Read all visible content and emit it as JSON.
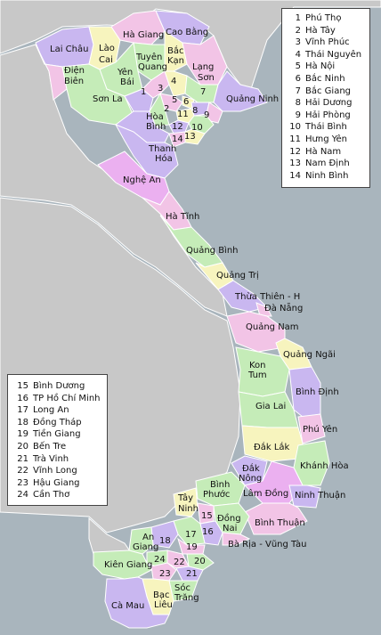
{
  "colors": {
    "sea": "#a9b5bd",
    "land_neighbor": "#c8c8c8",
    "border": "#ffffff",
    "pink": "#f2c4e6",
    "purple": "#c9b7f0",
    "green": "#c5ecb8",
    "yellow": "#f7f4be",
    "magenta": "#ebb0f0"
  },
  "legend_north": [
    {
      "num": "1",
      "name": "Phú Thọ"
    },
    {
      "num": "2",
      "name": "Hà Tây"
    },
    {
      "num": "3",
      "name": "Vĩnh Phúc"
    },
    {
      "num": "4",
      "name": "Thái Nguyên"
    },
    {
      "num": "5",
      "name": "Hà Nội"
    },
    {
      "num": "6",
      "name": "Bắc Ninh"
    },
    {
      "num": "7",
      "name": "Bắc Giang"
    },
    {
      "num": "8",
      "name": "Hải Dương"
    },
    {
      "num": "9",
      "name": "Hải Phòng"
    },
    {
      "num": "10",
      "name": "Thái Bình"
    },
    {
      "num": "11",
      "name": "Hưng Yên"
    },
    {
      "num": "12",
      "name": "Hà Nam"
    },
    {
      "num": "13",
      "name": "Nam Định"
    },
    {
      "num": "14",
      "name": "Ninh Bình"
    }
  ],
  "legend_south": [
    {
      "num": "15",
      "name": "Bình Dương"
    },
    {
      "num": "16",
      "name": "TP Hồ Chí Minh"
    },
    {
      "num": "17",
      "name": "Long An"
    },
    {
      "num": "18",
      "name": "Đồng Tháp"
    },
    {
      "num": "19",
      "name": "Tiền Giang"
    },
    {
      "num": "20",
      "name": "Bến Tre"
    },
    {
      "num": "21",
      "name": "Trà Vinh"
    },
    {
      "num": "22",
      "name": "Vĩnh Long"
    },
    {
      "num": "23",
      "name": "Hậu Giang"
    },
    {
      "num": "24",
      "name": "Cần Thơ"
    }
  ],
  "labels": {
    "lai_chau": "Lai Châu",
    "lao_cai": [
      "Lào",
      "Cai"
    ],
    "ha_giang": "Hà Giang",
    "cao_bang": "Cao Bằng",
    "tuyen_quang": [
      "Tuyên",
      "Quang"
    ],
    "bac_kan": [
      "Bắc",
      "Kạn"
    ],
    "lang_son": [
      "Lạng",
      "Sơn"
    ],
    "dien_bien": [
      "Điện",
      "Biên"
    ],
    "yen_bai": [
      "Yên",
      "Bái"
    ],
    "son_la": "Sơn La",
    "quang_ninh": "Quảng Ninh",
    "hoa_binh": [
      "Hòa",
      "Bình"
    ],
    "thanh_hoa": [
      "Thanh",
      "Hóa"
    ],
    "nghe_an": "Nghệ An",
    "ha_tinh": "Hà Tĩnh",
    "quang_binh": "Quảng Bình",
    "quang_tri": "Quảng Trị",
    "thua_thien_hue": "Thừa Thiên - H",
    "da_nang": "Đà Nẵng",
    "quang_nam": "Quảng Nam",
    "quang_ngai": "Quảng Ngãi",
    "kon_tum": [
      "Kon",
      "Tum"
    ],
    "binh_dinh": [
      "Bình Định"
    ],
    "gia_lai": "Gia Lai",
    "phu_yen": "Phú Yên",
    "dak_lak": "Đắk Lắk",
    "khanh_hoa": "Khánh Hòa",
    "dak_nong": [
      "Đắk",
      "Nông"
    ],
    "binh_phuoc": [
      "Bình",
      "Phước"
    ],
    "lam_dong": "Lâm Đồng",
    "ninh_thuan": "Ninh Thuận",
    "tay_ninh": [
      "Tây",
      "Ninh"
    ],
    "dong_nai": [
      "Đồng",
      "Nai"
    ],
    "binh_thuan": "Bình Thuận",
    "ba_ria": "Bà Rịa - Vũng Tàu",
    "an_giang": [
      "An",
      "Giang"
    ],
    "kien_giang": "Kiên Giang",
    "soc_trang": [
      "Sóc",
      "Trăng"
    ],
    "bac_lieu": [
      "Bạc",
      "Liêu"
    ],
    "ca_mau": "Cà Mau"
  },
  "numbers": [
    "1",
    "2",
    "3",
    "4",
    "5",
    "6",
    "7",
    "8",
    "9",
    "10",
    "11",
    "12",
    "13",
    "14",
    "15",
    "16",
    "17",
    "18",
    "19",
    "20",
    "21",
    "22",
    "23",
    "24"
  ]
}
